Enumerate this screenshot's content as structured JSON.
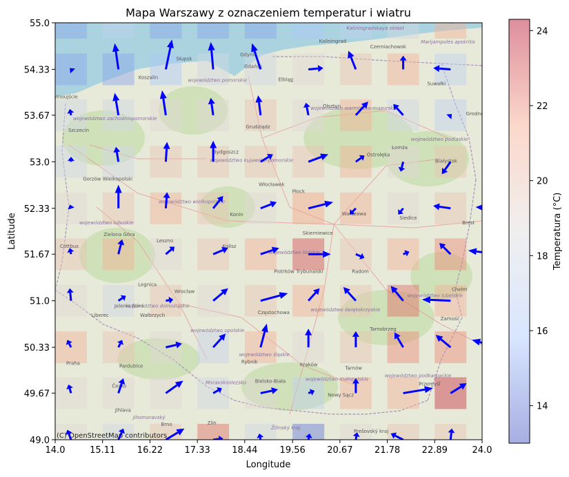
{
  "chart_data": {
    "type": "heatmap",
    "title": "Mapa Warszawy z oznaczeniem temperatur i wiatru",
    "xlabel": "Longitude",
    "ylabel": "Latitude",
    "xlim": [
      14.0,
      24.0
    ],
    "ylim": [
      49.0,
      55.0
    ],
    "xticks": [
      "14.0",
      "15.11",
      "16.22",
      "17.33",
      "18.44",
      "19.56",
      "20.67",
      "21.78",
      "22.89",
      "24.0"
    ],
    "yticks": [
      "49.0",
      "49.67",
      "50.33",
      "51.0",
      "51.67",
      "52.33",
      "53.0",
      "53.67",
      "54.33",
      "55.0"
    ],
    "colorbar": {
      "label": "Temperatura (°C)",
      "min": 13.0,
      "max": 24.3,
      "ticks": [
        "14",
        "16",
        "18",
        "20",
        "22",
        "24"
      ],
      "colormap": "coolwarm"
    },
    "grid_lon": [
      14.0,
      15.11,
      16.22,
      17.33,
      18.44,
      19.56,
      20.67,
      21.78,
      22.89,
      24.0
    ],
    "grid_lat": [
      49.0,
      49.67,
      50.33,
      51.0,
      51.67,
      52.33,
      53.0,
      53.67,
      54.33,
      55.0
    ],
    "temperature_rows_south_to_north": [
      [
        19.0,
        18.0,
        20.0,
        22.5,
        18.0,
        14.0,
        19.0,
        20.0,
        20.0,
        19.0
      ],
      [
        19.0,
        19.0,
        19.0,
        18.0,
        19.0,
        17.0,
        21.0,
        21.0,
        23.5,
        20.0
      ],
      [
        21.0,
        20.0,
        19.0,
        17.5,
        21.0,
        19.0,
        20.0,
        22.0,
        22.0,
        21.0
      ],
      [
        19.0,
        18.0,
        20.0,
        19.0,
        20.0,
        21.0,
        20.0,
        22.5,
        21.0,
        20.0
      ],
      [
        20.0,
        21.0,
        19.0,
        20.0,
        21.0,
        23.0,
        20.0,
        21.0,
        22.0,
        21.0
      ],
      [
        19.0,
        20.0,
        21.0,
        20.0,
        19.0,
        21.5,
        21.0,
        19.0,
        20.0,
        20.0
      ],
      [
        18.0,
        18.0,
        20.0,
        20.0,
        20.0,
        20.0,
        21.0,
        19.0,
        20.0,
        20.0
      ],
      [
        18.0,
        18.0,
        19.0,
        19.0,
        20.0,
        19.0,
        21.0,
        18.0,
        17.0,
        18.0
      ],
      [
        15.0,
        15.0,
        16.0,
        18.0,
        18.0,
        19.0,
        20.0,
        21.0,
        17.0,
        16.0
      ],
      [
        15.0,
        17.0,
        15.0,
        15.0,
        15.0,
        16.0,
        17.0,
        18.0,
        21.0,
        19.0
      ]
    ],
    "wind_u_rows_south_to_north": [
      [
        -0.3,
        0.4,
        1.5,
        0.8,
        -0.1,
        0.1,
        0.1,
        -1.0,
        0.1,
        -0.1
      ],
      [
        -0.2,
        0.4,
        1.4,
        0.7,
        1.4,
        0.5,
        0.0,
        2.4,
        1.3,
        1.5
      ],
      [
        -0.3,
        0.3,
        1.3,
        1.0,
        0.5,
        0.0,
        0.0,
        -0.7,
        -1.2,
        -2.1
      ],
      [
        -0.1,
        0.6,
        0.6,
        1.2,
        2.2,
        0.9,
        -1.0,
        -1.0,
        -2.3,
        -1.2
      ],
      [
        -0.1,
        0.3,
        0.7,
        1.2,
        1.5,
        1.8,
        0.7,
        0.5,
        -0.9,
        -2.4
      ],
      [
        -0.1,
        0.0,
        0.1,
        0.8,
        1.3,
        2.0,
        -0.5,
        -0.4,
        -1.4,
        -1.8
      ],
      [
        0.0,
        -0.2,
        0.1,
        0.0,
        1.0,
        1.6,
        0.7,
        -0.2,
        -0.7,
        0.9
      ],
      [
        -0.1,
        -0.3,
        -0.3,
        -0.2,
        -0.2,
        -0.2,
        1.0,
        -0.8,
        0.1,
        -0.1
      ],
      [
        -0.1,
        -0.3,
        0.5,
        -0.2,
        -0.7,
        1.2,
        -0.6,
        0.0,
        -1.4,
        -1.0
      ],
      [
        -0.6,
        -1.5,
        -1.6,
        -1.9,
        -0.9,
        0.9,
        0.0,
        1.0,
        1.2,
        2.3
      ]
    ],
    "wind_v_rows_south_to_north": [
      [
        0.8,
        0.9,
        0.9,
        0.1,
        0.5,
        0.5,
        0.6,
        0.5,
        0.9,
        1.2
      ],
      [
        0.7,
        1.2,
        1.0,
        0.4,
        0.3,
        0.2,
        1.2,
        0.4,
        0.8,
        0.7
      ],
      [
        0.6,
        0.6,
        0.3,
        1.1,
        1.9,
        1.5,
        1.3,
        1.2,
        1.0,
        0.6
      ],
      [
        1.0,
        0.4,
        0.1,
        1.0,
        0.6,
        1.0,
        1.1,
        1.2,
        0.1,
        0.8
      ],
      [
        0.5,
        1.2,
        0.6,
        0.5,
        0.5,
        0.0,
        -0.3,
        0.2,
        0.9,
        0.3
      ],
      [
        0.3,
        1.9,
        1.3,
        1.0,
        0.5,
        0.5,
        -0.5,
        -0.5,
        0.2,
        0.1
      ],
      [
        0.4,
        1.2,
        1.6,
        1.7,
        0.6,
        0.6,
        0.5,
        -0.8,
        -1.0,
        1.1
      ],
      [
        0.5,
        1.8,
        2.0,
        1.4,
        1.6,
        1.0,
        1.1,
        0.9,
        0.1,
        0.6
      ],
      [
        0.1,
        2.1,
        2.4,
        2.2,
        2.1,
        0.1,
        1.5,
        1.1,
        0.1,
        -0.3
      ],
      [
        0.6,
        3.3,
        3.3,
        3.3,
        3.4,
        2.0,
        1.0,
        1.0,
        1.2,
        0.4
      ]
    ],
    "grid": false
  },
  "basemap": {
    "attribution": "(C) OpenStreetMap contributors",
    "place_labels": [
      {
        "text": "Kaliningrad",
        "lon": 20.5,
        "lat": 54.71
      },
      {
        "text": "Gdańsk",
        "lon": 18.64,
        "lat": 54.35
      },
      {
        "text": "Gdynia",
        "lon": 18.53,
        "lat": 54.52
      },
      {
        "text": "Elbląg",
        "lon": 19.4,
        "lat": 54.16
      },
      {
        "text": "Olsztyn",
        "lon": 20.48,
        "lat": 53.78
      },
      {
        "text": "Szczecin",
        "lon": 14.55,
        "lat": 53.43
      },
      {
        "text": "Koszalin",
        "lon": 16.18,
        "lat": 54.19
      },
      {
        "text": "Słupsk",
        "lon": 17.02,
        "lat": 54.46
      },
      {
        "text": "Bydgoszcz",
        "lon": 18.0,
        "lat": 53.12
      },
      {
        "text": "Grudziądz",
        "lon": 18.75,
        "lat": 53.48
      },
      {
        "text": "Łomża",
        "lon": 22.07,
        "lat": 53.18
      },
      {
        "text": "Białystok",
        "lon": 23.16,
        "lat": 52.99
      },
      {
        "text": "Ostrołęka",
        "lon": 21.57,
        "lat": 53.08
      },
      {
        "text": "Suwałki",
        "lon": 22.93,
        "lat": 54.1
      },
      {
        "text": "Gorzów Wielkopolski",
        "lon": 15.23,
        "lat": 52.73
      },
      {
        "text": "Włocławek",
        "lon": 19.07,
        "lat": 52.65
      },
      {
        "text": "Płock",
        "lon": 19.7,
        "lat": 52.55
      },
      {
        "text": "Warszawa",
        "lon": 21.0,
        "lat": 52.23
      },
      {
        "text": "Siedlce",
        "lon": 22.27,
        "lat": 52.17
      },
      {
        "text": "Brest",
        "lon": 23.68,
        "lat": 52.1
      },
      {
        "text": "Konin",
        "lon": 18.25,
        "lat": 52.22
      },
      {
        "text": "Skierniewice",
        "lon": 20.15,
        "lat": 51.95
      },
      {
        "text": "Zielona Góra",
        "lon": 15.5,
        "lat": 51.93
      },
      {
        "text": "Leszno",
        "lon": 16.57,
        "lat": 51.84
      },
      {
        "text": "Kalisz",
        "lon": 18.08,
        "lat": 51.76
      },
      {
        "text": "Cottbus",
        "lon": 14.33,
        "lat": 51.76
      },
      {
        "text": "Piotrków Trybunalski",
        "lon": 19.7,
        "lat": 51.4
      },
      {
        "text": "Radom",
        "lon": 21.15,
        "lat": 51.4
      },
      {
        "text": "Legnica",
        "lon": 16.16,
        "lat": 51.21
      },
      {
        "text": "Wrocław",
        "lon": 17.03,
        "lat": 51.11
      },
      {
        "text": "Chełm",
        "lon": 23.47,
        "lat": 51.14
      },
      {
        "text": "Liberec",
        "lon": 15.05,
        "lat": 50.77
      },
      {
        "text": "Jelenia Góra",
        "lon": 15.73,
        "lat": 50.9
      },
      {
        "text": "Wałbrzych",
        "lon": 16.28,
        "lat": 50.77
      },
      {
        "text": "Częstochowa",
        "lon": 19.12,
        "lat": 50.81
      },
      {
        "text": "Tarnobrzeg",
        "lon": 21.68,
        "lat": 50.57
      },
      {
        "text": "Zamość",
        "lon": 23.25,
        "lat": 50.72
      },
      {
        "text": "Praha",
        "lon": 14.42,
        "lat": 50.08
      },
      {
        "text": "Pardubice",
        "lon": 15.78,
        "lat": 50.04
      },
      {
        "text": "Kraków",
        "lon": 19.94,
        "lat": 50.06
      },
      {
        "text": "Rybnik",
        "lon": 18.55,
        "lat": 50.1
      },
      {
        "text": "Tarnów",
        "lon": 20.99,
        "lat": 50.01
      },
      {
        "text": "Przemyśl",
        "lon": 22.77,
        "lat": 49.78
      },
      {
        "text": "Bielsko-Biała",
        "lon": 19.04,
        "lat": 49.82
      },
      {
        "text": "Nowy Sącz",
        "lon": 20.69,
        "lat": 49.62
      },
      {
        "text": "Česko",
        "lon": 15.5,
        "lat": 49.75
      },
      {
        "text": "Jihlava",
        "lon": 15.59,
        "lat": 49.4
      },
      {
        "text": "Brno",
        "lon": 16.61,
        "lat": 49.2
      },
      {
        "text": "Zlín",
        "lon": 17.67,
        "lat": 49.22
      },
      {
        "text": "Prešovský kraj",
        "lon": 21.4,
        "lat": 49.1
      },
      {
        "text": "Czerniachowsk",
        "lon": 21.8,
        "lat": 54.63
      },
      {
        "text": "Grodno",
        "lon": 23.83,
        "lat": 53.67
      },
      {
        "text": "Świnoujście",
        "lon": 14.2,
        "lat": 53.91
      }
    ],
    "region_labels": [
      {
        "text": "województwo zachodniopomorskie",
        "lon": 15.4,
        "lat": 53.6
      },
      {
        "text": "województwo pomorskie",
        "lon": 17.8,
        "lat": 54.15
      },
      {
        "text": "województwo warmińsko-mazurskie",
        "lon": 21.0,
        "lat": 53.75
      },
      {
        "text": "województwo podlaskie",
        "lon": 23.0,
        "lat": 53.3
      },
      {
        "text": "województwo kujawsko-pomorskie",
        "lon": 18.6,
        "lat": 53.0
      },
      {
        "text": "województwo wielkopolskie",
        "lon": 17.2,
        "lat": 52.4
      },
      {
        "text": "województwo lubuskie",
        "lon": 15.2,
        "lat": 52.1
      },
      {
        "text": "województwo łódzkie",
        "lon": 19.6,
        "lat": 51.67
      },
      {
        "text": "województwo lubelskie",
        "lon": 22.9,
        "lat": 51.05
      },
      {
        "text": "województwo dolnośląskie",
        "lon": 16.4,
        "lat": 50.9
      },
      {
        "text": "województwo opolskie",
        "lon": 17.8,
        "lat": 50.55
      },
      {
        "text": "województwo świętokrzyskie",
        "lon": 20.8,
        "lat": 50.85
      },
      {
        "text": "województwo śląskie",
        "lon": 18.9,
        "lat": 50.2
      },
      {
        "text": "województwo małopolskie",
        "lon": 20.6,
        "lat": 49.85
      },
      {
        "text": "województwo podkarpackie",
        "lon": 22.5,
        "lat": 49.9
      },
      {
        "text": "Moravskoslezsko",
        "lon": 18.0,
        "lat": 49.8
      },
      {
        "text": "Jihomoravský",
        "lon": 16.2,
        "lat": 49.3
      },
      {
        "text": "Žilinský kraj",
        "lon": 19.4,
        "lat": 49.15
      },
      {
        "text": "Marijampolės apskritis",
        "lon": 23.2,
        "lat": 54.7
      },
      {
        "text": "Kaliningradskaya oblast",
        "lon": 21.5,
        "lat": 54.9
      }
    ]
  }
}
